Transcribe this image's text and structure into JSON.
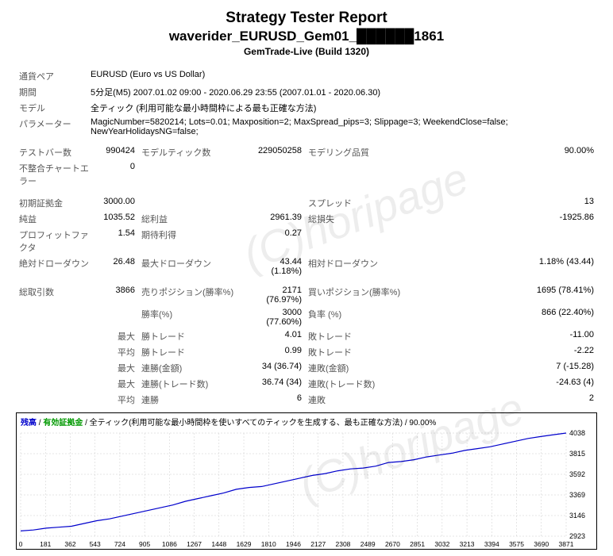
{
  "header": {
    "title": "Strategy Tester Report",
    "subtitle": "waverider_EURUSD_Gem01_██████1861",
    "server": "GemTrade-Live (Build 1320)"
  },
  "watermark": "(C)horipage",
  "info": {
    "symbol_label": "通貨ペア",
    "symbol": "EURUSD (Euro vs US Dollar)",
    "period_label": "期間",
    "period": "5分足(M5) 2007.01.02 09:00 - 2020.06.29 23:55 (2007.01.01 - 2020.06.30)",
    "model_label": "モデル",
    "model": "全ティック (利用可能な最小時間枠による最も正確な方法)",
    "params_label": "パラメーター",
    "params": "MagicNumber=5820214;  Lots=0.01;  Maxposition=2;  MaxSpread_pips=3;  Slippage=3;  WeekendClose=false;  NewYearHolidaysNG=false;"
  },
  "stats": {
    "bars_label": "テストバー数",
    "bars": "990424",
    "ticks_label": "モデルティック数",
    "ticks": "229050258",
    "quality_label": "モデリング品質",
    "quality": "90.00%",
    "mismatch_label": "不整合チャートエラー",
    "mismatch": "0",
    "deposit_label": "初期証拠金",
    "deposit": "3000.00",
    "spread_label": "スプレッド",
    "spread": "13",
    "netprofit_label": "純益",
    "netprofit": "1035.52",
    "gross_profit_label": "総利益",
    "gross_profit": "2961.39",
    "gross_loss_label": "総損失",
    "gross_loss": "-1925.86",
    "pf_label": "プロフィットファクタ",
    "pf": "1.54",
    "expected_label": "期待利得",
    "expected": "0.27",
    "absdd_label": "絶対ドローダウン",
    "absdd": "26.48",
    "maxdd_label": "最大ドローダウン",
    "maxdd": "43.44 (1.18%)",
    "reldd_label": "相対ドローダウン",
    "reldd": "1.18% (43.44)",
    "total_trades_label": "総取引数",
    "total_trades": "3866",
    "short_label": "売りポジション(勝率%)",
    "short": "2171 (76.97%)",
    "long_label": "買いポジション(勝率%)",
    "long": "1695 (78.41%)",
    "winrate_label": "勝率(%)",
    "winrate": "3000 (77.60%)",
    "lossrate_label": "負率 (%)",
    "lossrate": "866 (22.40%)",
    "max_label": "最大",
    "avg_label": "平均",
    "win_trade_label": "勝トレード",
    "max_win_trade": "4.01",
    "avg_win_trade": "0.99",
    "loss_trade_label": "敗トレード",
    "max_loss_trade": "-11.00",
    "avg_loss_trade": "-2.22",
    "conswin_amt_label": "連勝(金額)",
    "conswin_amt": "34 (36.74)",
    "consloss_amt_label": "連敗(金額)",
    "consloss_amt": "7 (-15.28)",
    "conswin_cnt_label": "連勝(トレード数)",
    "conswin_cnt": "36.74 (34)",
    "consloss_cnt_label": "連敗(トレード数)",
    "consloss_cnt": "-24.63 (4)",
    "avg_conswin_label": "連勝",
    "avg_conswin": "6",
    "avg_consloss_label": "連敗",
    "avg_consloss": "2"
  },
  "chart": {
    "header_balance": "残高",
    "header_equity": "有効証拠金",
    "header_rest": " / 全ティック(利用可能な最小時間枠を使いすべてのティックを生成する、最も正確な方法) / 90.00%",
    "y_ticks": [
      "4038",
      "3815",
      "3592",
      "3369",
      "3146",
      "2923"
    ],
    "y_min": 2923,
    "y_max": 4038,
    "x_ticks": [
      "0",
      "181",
      "362",
      "543",
      "724",
      "905",
      "1086",
      "1267",
      "1448",
      "1629",
      "1810",
      "1946",
      "2127",
      "2308",
      "2489",
      "2670",
      "2851",
      "3032",
      "3213",
      "3394",
      "3575",
      "3690",
      "3871"
    ],
    "points": [
      2980,
      2990,
      3010,
      3020,
      3030,
      3060,
      3090,
      3110,
      3140,
      3170,
      3200,
      3230,
      3260,
      3300,
      3330,
      3360,
      3390,
      3430,
      3450,
      3460,
      3490,
      3520,
      3550,
      3580,
      3600,
      3630,
      3650,
      3660,
      3680,
      3720,
      3730,
      3750,
      3780,
      3800,
      3820,
      3850,
      3870,
      3890,
      3920,
      3950,
      3980,
      4000,
      4020,
      4038
    ],
    "line_color": "#0000cc",
    "grid_color": "#cccccc"
  }
}
